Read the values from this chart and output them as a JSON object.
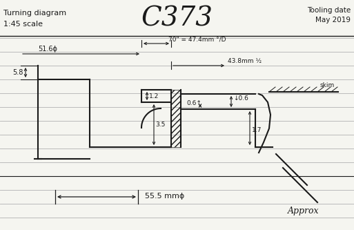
{
  "title": "C373",
  "top_left_text1": "Turning diagram",
  "top_left_text2": "1:45 scale",
  "top_right_text1": "Tooling date",
  "top_right_text2": "May 2019",
  "bottom_label": "55.5 mmϕ",
  "bottom_approx": "Approx",
  "dim_70": "70\" = 47.4mm °/D",
  "dim_516": "51.6ϕ",
  "dim_438": "43.8mm ½",
  "dim_06a": "↓0.6",
  "dim_06b": "0.6↑",
  "dim_12": "1.2",
  "dim_35": "3.5",
  "dim_17": "1.7",
  "dim_58": "5.8",
  "label_skim": "skim",
  "bg_color": "#f5f5f0",
  "line_color": "#1a1a1a",
  "ruled_line_color": "#bbbbbb",
  "fig_w": 5.13,
  "fig_h": 3.33,
  "dpi": 100
}
